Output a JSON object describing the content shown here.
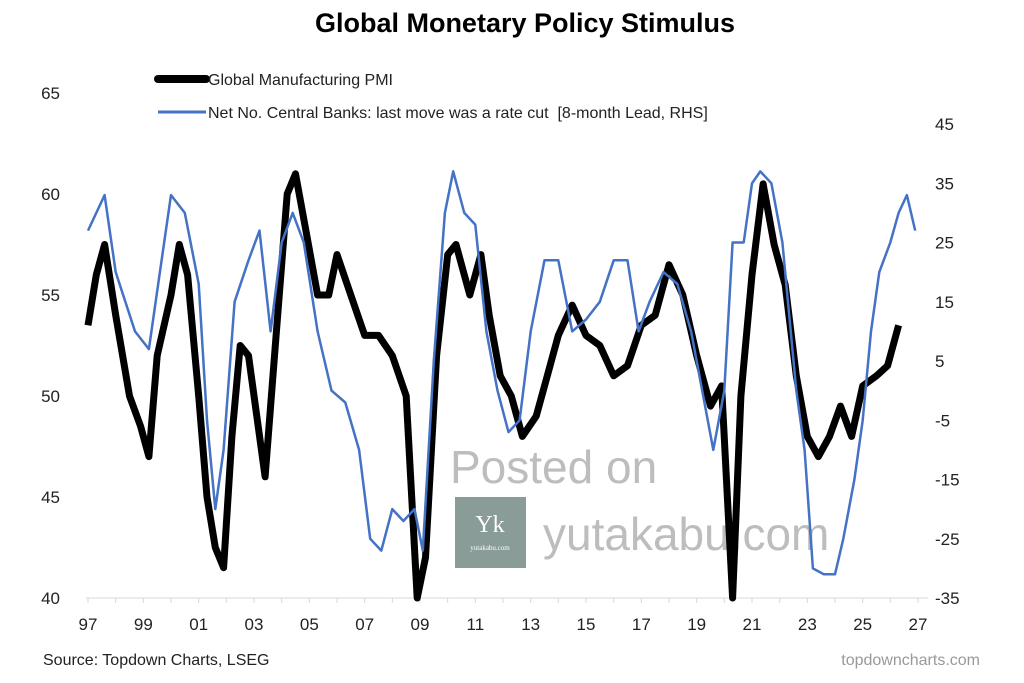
{
  "chart_data": {
    "type": "line",
    "title": "Global Monetary Policy Stimulus",
    "source": "Source: Topdown Charts, LSEG",
    "brand": "topdowncharts.com",
    "watermark": {
      "line1": "Posted on",
      "line2": "yutakabu.com",
      "logo_text": "Yk",
      "logo_sub": "yutakabu.com"
    },
    "legend_placement": "top-left",
    "grid": false,
    "x_tick_labels": [
      "97",
      "99",
      "01",
      "03",
      "05",
      "07",
      "09",
      "11",
      "13",
      "15",
      "17",
      "19",
      "21",
      "23",
      "25",
      "27"
    ],
    "xlim": [
      1997,
      2027
    ],
    "y_left": {
      "lim": [
        40,
        65
      ],
      "ticks": [
        "40",
        "45",
        "50",
        "55",
        "60",
        "65"
      ]
    },
    "y_right": {
      "lim": [
        -35,
        45
      ],
      "ticks": [
        "-35",
        "-25",
        "-15",
        "-5",
        "5",
        "15",
        "25",
        "35",
        "45"
      ]
    },
    "colors": {
      "pmi": "#000000",
      "banks": "#4472C4"
    },
    "series": [
      {
        "name": "Global Manufacturing PMI",
        "axis": "left",
        "x": [
          1997.0,
          1997.3,
          1997.6,
          1998.0,
          1998.5,
          1998.9,
          1999.2,
          1999.5,
          2000.0,
          2000.3,
          2000.6,
          2001.0,
          2001.3,
          2001.6,
          2001.9,
          2002.2,
          2002.5,
          2002.8,
          2003.1,
          2003.4,
          2003.8,
          2004.2,
          2004.5,
          2004.9,
          2005.3,
          2005.7,
          2006.0,
          2006.5,
          2007.0,
          2007.5,
          2008.0,
          2008.5,
          2008.9,
          2009.2,
          2009.6,
          2010.0,
          2010.3,
          2010.8,
          2011.2,
          2011.5,
          2011.9,
          2012.3,
          2012.7,
          2013.2,
          2013.6,
          2014.0,
          2014.5,
          2015.0,
          2015.5,
          2016.0,
          2016.5,
          2017.0,
          2017.5,
          2018.0,
          2018.5,
          2019.0,
          2019.5,
          2019.9,
          2020.3,
          2020.6,
          2021.0,
          2021.4,
          2021.8,
          2022.2,
          2022.6,
          2023.0,
          2023.4,
          2023.8,
          2024.2,
          2024.6,
          2025.0,
          2025.5,
          2025.9,
          2026.3
        ],
        "y": [
          53.5,
          56,
          57.5,
          54,
          50,
          48.5,
          47,
          52,
          55,
          57.5,
          56,
          50,
          45,
          42.5,
          41.5,
          48,
          52.5,
          52,
          49,
          46,
          53,
          60,
          61,
          58,
          55,
          55,
          57,
          55,
          53,
          53,
          52,
          50,
          40,
          42,
          52,
          57,
          57.5,
          55,
          57,
          54,
          51,
          50,
          48,
          49,
          51,
          53,
          54.5,
          53,
          52.5,
          51,
          51.5,
          53.5,
          54,
          56.5,
          55,
          52,
          49.5,
          50.5,
          40,
          50,
          56,
          60.5,
          57.5,
          55.5,
          51,
          48,
          47,
          48,
          49.5,
          48,
          50.5,
          51,
          51.5,
          53.5
        ]
      },
      {
        "name": "Net No. Central Banks: last move was a rate cut  [8-month Lead, RHS]",
        "axis": "right",
        "x": [
          1997.0,
          1997.6,
          1998.0,
          1998.7,
          1999.2,
          1999.6,
          2000.0,
          2000.5,
          2001.0,
          2001.3,
          2001.6,
          2001.9,
          2002.3,
          2002.8,
          2003.2,
          2003.6,
          2004.0,
          2004.4,
          2004.8,
          2005.3,
          2005.8,
          2006.3,
          2006.8,
          2007.2,
          2007.6,
          2008.0,
          2008.4,
          2008.8,
          2009.1,
          2009.5,
          2009.9,
          2010.2,
          2010.6,
          2011.0,
          2011.4,
          2011.8,
          2012.2,
          2012.6,
          2013.0,
          2013.5,
          2014.0,
          2014.5,
          2015.0,
          2015.5,
          2016.0,
          2016.5,
          2016.9,
          2017.3,
          2017.8,
          2018.3,
          2018.8,
          2019.2,
          2019.6,
          2020.0,
          2020.3,
          2020.7,
          2021.0,
          2021.3,
          2021.7,
          2022.1,
          2022.6,
          2022.9,
          2023.2,
          2023.6,
          2024.0,
          2024.3,
          2024.7,
          2025.0,
          2025.3,
          2025.6,
          2026.0,
          2026.3,
          2026.6,
          2026.9
        ],
        "y": [
          27,
          33,
          20,
          10,
          7,
          20,
          33,
          30,
          18,
          -5,
          -20,
          -10,
          15,
          22,
          27,
          10,
          25,
          30,
          25,
          10,
          0,
          -2,
          -10,
          -25,
          -27,
          -20,
          -22,
          -20,
          -27,
          5,
          30,
          37,
          30,
          28,
          10,
          0,
          -7,
          -5,
          10,
          22,
          22,
          10,
          12,
          15,
          22,
          22,
          10,
          15,
          20,
          18,
          10,
          0,
          -10,
          0,
          25,
          25,
          35,
          37,
          35,
          25,
          0,
          -10,
          -30,
          -31,
          -31,
          -25,
          -15,
          -5,
          10,
          20,
          25,
          30,
          33,
          27
        ]
      }
    ]
  }
}
